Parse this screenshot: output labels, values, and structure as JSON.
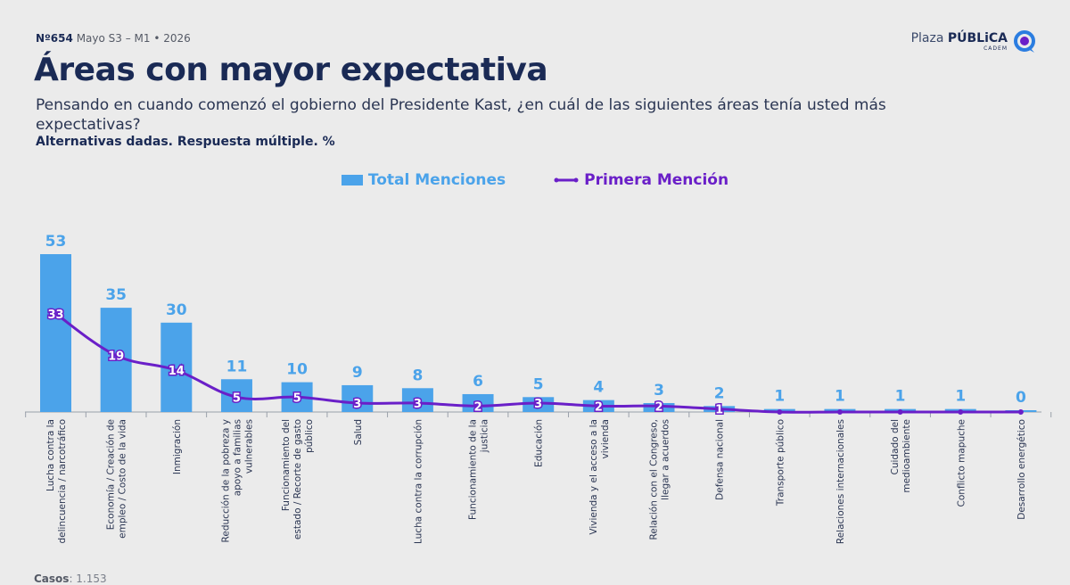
{
  "header": {
    "issue": "Nº654",
    "period": "Mayo S3 – M1 • 2026"
  },
  "brand": {
    "name_light": "Plaza ",
    "name_bold": "PÚBLiCA",
    "sub": "CADEM",
    "logo_icon": "cadem-logo-icon",
    "color": "#1a2a55"
  },
  "title": "Áreas con mayor expectativa",
  "question": "Pensando en cuando comenzó el gobierno del Presidente Kast, ¿en cuál de las siguientes áreas tenía usted más expectativas?",
  "note": "Alternativas dadas. Respuesta múltiple. %",
  "footer": {
    "cases_label": "Casos",
    "cases_value": ": 1.153"
  },
  "chart_data": {
    "type": "bar",
    "categories": [
      [
        "Lucha contra la",
        "delincuencia / narcotráfico"
      ],
      [
        "Economía / Creación de",
        "empleo / Costo de la vida"
      ],
      [
        "Inmigración"
      ],
      [
        "Reducción de la pobreza y",
        "apoyo a familias",
        "vulnerables"
      ],
      [
        "Funcionamiento del",
        "estado / Recorte de gasto",
        "público"
      ],
      [
        "Salud"
      ],
      [
        "Lucha contra la corrupción"
      ],
      [
        "Funcionamiento de la",
        "justicia"
      ],
      [
        "Educación"
      ],
      [
        "Vivienda y el acceso a la",
        "vivienda"
      ],
      [
        "Relación con el Congreso,",
        "llegar a acuerdos"
      ],
      [
        "Defensa nacional"
      ],
      [
        "Transporte público"
      ],
      [
        "Relaciones internacionales"
      ],
      [
        "Cuidado del",
        "medioambiente"
      ],
      [
        "Conflicto mapuche"
      ],
      [
        "Desarrollo energético"
      ]
    ],
    "series": [
      {
        "name": "Total Menciones",
        "kind": "bar",
        "color": "#4ba3ea",
        "values": [
          53,
          35,
          30,
          11,
          10,
          9,
          8,
          6,
          5,
          4,
          3,
          2,
          1,
          1,
          1,
          1,
          0
        ]
      },
      {
        "name": "Primera Mención",
        "kind": "line",
        "color": "#6a1fc8",
        "values": [
          33,
          19,
          14,
          5,
          5,
          3,
          3,
          2,
          3,
          2,
          2,
          1,
          0,
          0,
          0,
          0,
          0
        ],
        "labels": [
          "33",
          "19",
          "14",
          "5",
          "5",
          "3",
          "3",
          "2",
          "3",
          "2",
          "2",
          "1",
          "",
          "",
          "",
          "",
          ""
        ]
      }
    ],
    "ylim": [
      0,
      53
    ],
    "grid": false,
    "legend_position": "top-center"
  }
}
